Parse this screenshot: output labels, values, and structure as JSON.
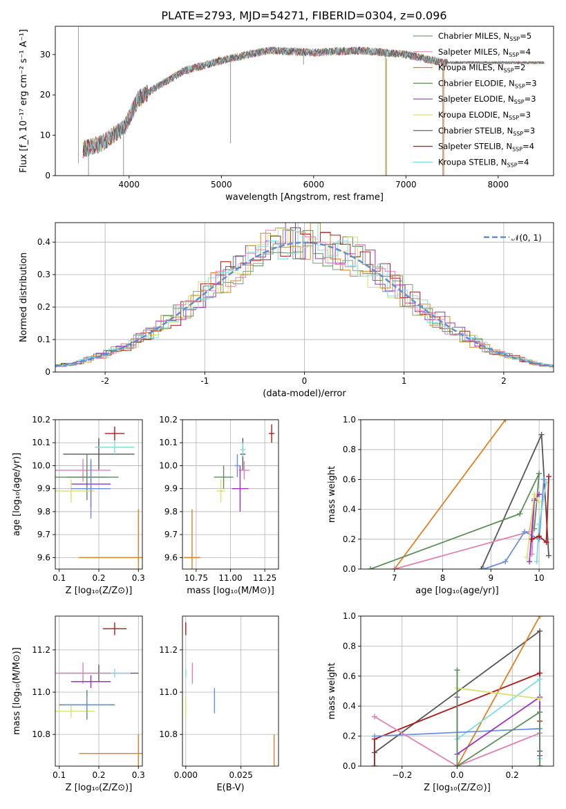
{
  "figure": {
    "title": "PLATE=2793, MJD=54271, FIBERID=0304, z=0.096"
  },
  "colors": {
    "chabrier_miles": "#7fa07f",
    "salpeter_miles": "#e080b0",
    "kroupa_miles": "#e07f20",
    "chabrier_elodie": "#5a8f5a",
    "salpeter_elodie": "#9b30c0",
    "kroupa_elodie": "#d8e070",
    "chabrier_stelib": "#555555",
    "salpeter_stelib": "#b01818",
    "kroupa_stelib": "#80dde0",
    "extra_blue": "#6a8fe0",
    "gaussian": "#5b8fd0"
  },
  "chart_data": [
    {
      "type": "line",
      "id": "spectrum",
      "xlabel": "wavelength [Angstrom, rest frame]",
      "ylabel": "Flux [f_λ 10⁻¹⁷ erg cm⁻² s⁻¹ A⁻¹]",
      "xlim": [
        3200,
        8600
      ],
      "ylim": [
        0,
        37
      ],
      "xticks": [
        4000,
        5000,
        6000,
        7000,
        8000
      ],
      "yticks": [
        0,
        10,
        20,
        30
      ],
      "continuum": {
        "x": [
          3500,
          3700,
          3950,
          4100,
          4300,
          4600,
          5000,
          5500,
          6000,
          6500,
          7000,
          7400
        ],
        "y": [
          6.5,
          8,
          12,
          19,
          22,
          26,
          28.5,
          31,
          30.5,
          31,
          30,
          28
        ]
      },
      "spikes": [
        [
          5100,
          8
        ],
        [
          3560,
          0
        ],
        [
          3940,
          0
        ],
        [
          5890,
          27.5
        ],
        [
          6780,
          0
        ],
        [
          7400,
          0
        ]
      ],
      "legend_position": "right",
      "legend": [
        {
          "key": "chabrier_miles",
          "label": "Chabrier MILES, N",
          "sub": "SSP",
          "n": "=5"
        },
        {
          "key": "salpeter_miles",
          "label": "Salpeter MILES, N",
          "sub": "SSP",
          "n": "=4"
        },
        {
          "key": "kroupa_miles",
          "label": "Kroupa MILES, N",
          "sub": "SSP",
          "n": "=2"
        },
        {
          "key": "chabrier_elodie",
          "label": "Chabrier ELODIE, N",
          "sub": "SSP",
          "n": "=3"
        },
        {
          "key": "salpeter_elodie",
          "label": "Salpeter ELODIE, N",
          "sub": "SSP",
          "n": "=3"
        },
        {
          "key": "kroupa_elodie",
          "label": "Kroupa ELODIE, N",
          "sub": "SSP",
          "n": "=3"
        },
        {
          "key": "chabrier_stelib",
          "label": "Chabrier STELIB, N",
          "sub": "SSP",
          "n": "=3"
        },
        {
          "key": "salpeter_stelib",
          "label": "Salpeter STELIB, N",
          "sub": "SSP",
          "n": "=4"
        },
        {
          "key": "kroupa_stelib",
          "label": "Kroupa STELIB, N",
          "sub": "SSP",
          "n": "=4"
        }
      ]
    },
    {
      "type": "area",
      "id": "residual_hist",
      "xlabel": "(data-model)/error",
      "ylabel": "Normed distribution",
      "xlim": [
        -2.5,
        2.5
      ],
      "ylim": [
        0,
        0.46
      ],
      "xticks": [
        -2,
        -1,
        0,
        1,
        2
      ],
      "yticks": [
        0.0,
        0.1,
        0.2,
        0.3,
        0.4
      ],
      "bin_width": 0.1,
      "legend_position": "top-right",
      "gaussian_label": "𝒩(0, 1)",
      "grid": true
    },
    {
      "type": "scatter",
      "id": "age_vs_Z",
      "xlabel": "Z [log₁₀(Z/Z⊙)]",
      "ylabel": "age  [log₁₀(age/yr)]",
      "xlim": [
        0.09,
        0.31
      ],
      "ylim": [
        9.55,
        10.2
      ],
      "xticks": [
        0.1,
        0.2,
        0.3
      ],
      "xticklabels": [
        "0.1",
        "0.2",
        "0.3"
      ],
      "yticks": [
        9.6,
        9.7,
        9.8,
        9.9,
        10.0,
        10.1,
        10.2
      ],
      "yticklabels": [
        "9.6",
        "9.7",
        "9.8",
        "9.9",
        "10.0",
        "10.1",
        "10.2"
      ],
      "points": [
        {
          "key": "salpeter_stelib",
          "x": 0.24,
          "y": 10.14,
          "xerr": 0.025,
          "yerr": 0.03
        },
        {
          "key": "chabrier_stelib",
          "x": 0.2,
          "y": 10.05,
          "xerr": 0.09,
          "yerr": 0.07
        },
        {
          "key": "kroupa_stelib",
          "x": 0.24,
          "y": 10.08,
          "xerr": 0.05,
          "yerr": 0.03
        },
        {
          "key": "salpeter_miles",
          "x": 0.16,
          "y": 9.98,
          "xerr": 0.07,
          "yerr": 0.05
        },
        {
          "key": "chabrier_miles",
          "x": 0.17,
          "y": 9.95,
          "xerr": 0.05,
          "yerr": 0.06
        },
        {
          "key": "chabrier_elodie",
          "x": 0.17,
          "y": 9.95,
          "xerr": 0.08,
          "yerr": 0.1
        },
        {
          "key": "salpeter_elodie",
          "x": 0.18,
          "y": 9.92,
          "xerr": 0.05,
          "yerr": 0.1
        },
        {
          "key": "kroupa_elodie",
          "x": 0.13,
          "y": 9.89,
          "xerr": 0.06,
          "yerr": 0.05
        },
        {
          "key": "extra_blue",
          "x": 0.18,
          "y": 9.9,
          "xerr": 0.05,
          "yerr": 0.13
        },
        {
          "key": "kroupa_miles",
          "x": 0.3,
          "y": 9.6,
          "xerr": 0.15,
          "yerr": 0.21
        }
      ],
      "grid": true
    },
    {
      "type": "scatter",
      "id": "age_vs_mass",
      "xlabel": "mass [log₁₀(M/M⊙)]",
      "ylabel": "",
      "xlim": [
        10.65,
        11.35
      ],
      "ylim": [
        9.55,
        10.2
      ],
      "xticks": [
        10.75,
        11.0,
        11.25
      ],
      "xticklabels": [
        "10.75",
        "11.00",
        "11.25"
      ],
      "yticks": [
        9.6,
        9.7,
        9.8,
        9.9,
        10.0,
        10.1,
        10.2
      ],
      "yticklabels": [
        "9.6",
        "9.7",
        "9.8",
        "9.9",
        "10.0",
        "10.1",
        "10.2"
      ],
      "points": [
        {
          "key": "salpeter_stelib",
          "x": 11.3,
          "y": 10.14,
          "xerr": 0.02,
          "yerr": 0.04
        },
        {
          "key": "chabrier_stelib",
          "x": 11.09,
          "y": 10.05,
          "xerr": 0.02,
          "yerr": 0.07
        },
        {
          "key": "kroupa_stelib",
          "x": 11.09,
          "y": 10.07,
          "xerr": 0.02,
          "yerr": 0.03
        },
        {
          "key": "extra_blue",
          "x": 11.05,
          "y": 10.0,
          "xerr": 0.02,
          "yerr": 0.05
        },
        {
          "key": "salpeter_miles",
          "x": 11.1,
          "y": 9.98,
          "xerr": 0.04,
          "yerr": 0.04
        },
        {
          "key": "chabrier_elodie",
          "x": 10.95,
          "y": 9.95,
          "xerr": 0.07,
          "yerr": 0.05
        },
        {
          "key": "kroupa_elodie",
          "x": 10.93,
          "y": 9.89,
          "xerr": 0.03,
          "yerr": 0.05
        },
        {
          "key": "salpeter_elodie",
          "x": 11.07,
          "y": 9.9,
          "xerr": 0.06,
          "yerr": 0.1
        },
        {
          "key": "kroupa_miles",
          "x": 10.72,
          "y": 9.6,
          "xerr": 0.06,
          "yerr": 0.21
        }
      ],
      "grid": true
    },
    {
      "type": "line",
      "id": "massweight_vs_age",
      "xlabel": "age  [log₁₀(age/yr)]",
      "ylabel": "mass weight",
      "xlim": [
        6.3,
        10.3
      ],
      "ylim": [
        0,
        1.0
      ],
      "xticks": [
        7,
        8,
        9,
        10
      ],
      "yticks": [
        0.0,
        0.2,
        0.4,
        0.6,
        0.8,
        1.0
      ],
      "yticklabels": [
        "0.0",
        "0.2",
        "0.4",
        "0.6",
        "0.8",
        "1.0"
      ],
      "series": [
        {
          "key": "kroupa_miles",
          "x": [
            7.0,
            9.3
          ],
          "y": [
            0.0,
            1.0
          ]
        },
        {
          "key": "chabrier_stelib",
          "x": [
            8.8,
            10.05,
            10.2
          ],
          "y": [
            0.0,
            0.9,
            0.09
          ]
        },
        {
          "key": "chabrier_elodie",
          "x": [
            6.5,
            9.6,
            10.0,
            9.9
          ],
          "y": [
            0.0,
            0.37,
            0.64,
            0.27
          ]
        },
        {
          "key": "salpeter_miles",
          "x": [
            7.0,
            9.8,
            9.9,
            9.85
          ],
          "y": [
            0.0,
            0.25,
            0.47,
            0.1
          ]
        },
        {
          "key": "extra_blue",
          "x": [
            8.85,
            9.3,
            9.7,
            10.0,
            10.1
          ],
          "y": [
            0.0,
            0.05,
            0.25,
            0.2,
            0.6
          ]
        },
        {
          "key": "salpeter_elodie",
          "x": [
            9.8,
            9.9,
            10.0
          ],
          "y": [
            0.05,
            0.46,
            0.5
          ]
        },
        {
          "key": "kroupa_elodie",
          "x": [
            9.75,
            9.9,
            10.0
          ],
          "y": [
            0.08,
            0.5,
            0.45
          ]
        },
        {
          "key": "kroupa_stelib",
          "x": [
            9.95,
            10.0,
            10.15
          ],
          "y": [
            0.05,
            0.3,
            0.58
          ]
        },
        {
          "key": "salpeter_stelib",
          "x": [
            9.85,
            10.0,
            10.15,
            10.2
          ],
          "y": [
            0.2,
            0.22,
            0.18,
            0.62
          ]
        }
      ],
      "grid": true
    },
    {
      "type": "scatter",
      "id": "mass_vs_Z",
      "xlabel": "Z [log₁₀(Z/Z⊙)]",
      "ylabel": "mass [log₁₀(M/M⊙)]",
      "xlim": [
        0.09,
        0.31
      ],
      "ylim": [
        10.65,
        11.36
      ],
      "xticks": [
        0.1,
        0.2,
        0.3
      ],
      "xticklabels": [
        "0.1",
        "0.2",
        "0.3"
      ],
      "yticks": [
        10.8,
        11.0,
        11.2
      ],
      "yticklabels": [
        "10.8",
        "11.0",
        "11.2"
      ],
      "points": [
        {
          "key": "salpeter_stelib",
          "x": 0.24,
          "y": 11.3,
          "xerr": 0.03,
          "yerr": 0.03
        },
        {
          "key": "chabrier_stelib",
          "x": 0.2,
          "y": 11.09,
          "xerr": 0.1,
          "yerr": 0.04
        },
        {
          "key": "kroupa_stelib",
          "x": 0.24,
          "y": 11.09,
          "xerr": 0.04,
          "yerr": 0.02
        },
        {
          "key": "salpeter_miles",
          "x": 0.16,
          "y": 11.09,
          "xerr": 0.07,
          "yerr": 0.05
        },
        {
          "key": "salpeter_elodie",
          "x": 0.18,
          "y": 11.05,
          "xerr": 0.05,
          "yerr": 0.03
        },
        {
          "key": "chabrier_elodie",
          "x": 0.17,
          "y": 10.94,
          "xerr": 0.07,
          "yerr": 0.07
        },
        {
          "key": "kroupa_elodie",
          "x": 0.13,
          "y": 10.91,
          "xerr": 0.06,
          "yerr": 0.03
        },
        {
          "key": "extra_blue",
          "x": 0.17,
          "y": 10.94,
          "xerr": 0.06,
          "yerr": 0.04
        },
        {
          "key": "kroupa_miles",
          "x": 0.3,
          "y": 10.71,
          "xerr": 0.15,
          "yerr": 0.09
        }
      ],
      "grid": true
    },
    {
      "type": "scatter",
      "id": "mass_vs_EBV",
      "xlabel": "E(B-V)",
      "ylabel": "",
      "xlim": [
        -0.0015,
        0.042
      ],
      "ylim": [
        10.65,
        11.36
      ],
      "xticks": [
        0.0,
        0.025
      ],
      "xticklabels": [
        "0.000",
        "0.025"
      ],
      "yticks": [
        10.8,
        11.0,
        11.2
      ],
      "yticklabels": [
        "10.8",
        "11.0",
        "11.2"
      ],
      "points": [
        {
          "key": "salpeter_stelib",
          "x": 0.0,
          "y": 11.3,
          "xerr": 0.0,
          "yerr": 0.03
        },
        {
          "key": "kroupa_stelib",
          "x": 0.0,
          "y": 11.09,
          "xerr": 0.0,
          "yerr": 0.02
        },
        {
          "key": "salpeter_miles",
          "x": 0.003,
          "y": 11.09,
          "xerr": 0.0,
          "yerr": 0.05
        },
        {
          "key": "kroupa_elodie",
          "x": 0.0,
          "y": 10.93,
          "xerr": 0.0,
          "yerr": 0.05
        },
        {
          "key": "extra_blue",
          "x": 0.013,
          "y": 10.96,
          "xerr": 0.0,
          "yerr": 0.06
        },
        {
          "key": "kroupa_miles",
          "x": 0.04,
          "y": 10.71,
          "xerr": 0.0,
          "yerr": 0.09
        }
      ],
      "grid": true
    },
    {
      "type": "line",
      "id": "massweight_vs_Z",
      "xlabel": "Z [log₁₀(Z/Z⊙)]",
      "ylabel": "mass weight",
      "xlim": [
        -0.35,
        0.35
      ],
      "ylim": [
        0,
        1.0
      ],
      "xticks": [
        -0.2,
        0.0,
        0.2
      ],
      "xticklabels": [
        "−0.2",
        "0.0",
        "0.2"
      ],
      "yticks": [
        0.0,
        0.2,
        0.4,
        0.6,
        0.8,
        1.0
      ],
      "yticklabels": [
        "0.0",
        "0.2",
        "0.4",
        "0.6",
        "0.8",
        "1.0"
      ],
      "series": [
        {
          "key": "chabrier_stelib",
          "x": [
            -0.3,
            0.3,
            0.3
          ],
          "y": [
            0.09,
            0.9,
            0.1
          ]
        },
        {
          "key": "salpeter_stelib",
          "x": [
            -0.3,
            -0.3,
            0.3,
            0.3
          ],
          "y": [
            0.0,
            0.18,
            0.62,
            0.3
          ]
        },
        {
          "key": "kroupa_miles",
          "x": [
            0.0,
            0.3
          ],
          "y": [
            0.0,
            1.0
          ]
        },
        {
          "key": "kroupa_stelib",
          "x": [
            0.0,
            0.3,
            0.3
          ],
          "y": [
            0.18,
            0.58,
            0.05
          ]
        },
        {
          "key": "extra_blue",
          "x": [
            -0.3,
            0.3,
            0.3
          ],
          "y": [
            0.2,
            0.25,
            0.0
          ]
        },
        {
          "key": "salpeter_miles",
          "x": [
            -0.3,
            0.0,
            0.3
          ],
          "y": [
            0.33,
            0.0,
            0.22
          ]
        },
        {
          "key": "salpeter_elodie",
          "x": [
            0.0,
            0.0,
            0.3,
            0.3
          ],
          "y": [
            0.46,
            0.08,
            0.46,
            0.07
          ]
        },
        {
          "key": "kroupa_elodie",
          "x": [
            0.0,
            0.3
          ],
          "y": [
            0.52,
            0.45
          ]
        },
        {
          "key": "chabrier_elodie",
          "x": [
            0.0,
            0.0,
            0.3,
            0.3
          ],
          "y": [
            0.64,
            0.0,
            0.36,
            0.0
          ]
        }
      ],
      "grid": true
    }
  ]
}
